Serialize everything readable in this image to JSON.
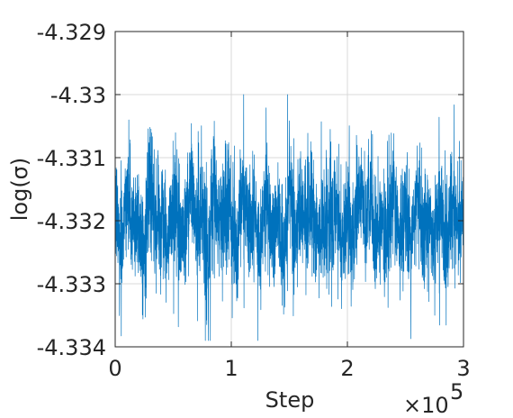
{
  "chart_data": {
    "type": "line",
    "title": "",
    "xlabel": "Step",
    "ylabel": "log(σ)",
    "x_exponent_label": {
      "prefix": "×10",
      "power": "5"
    },
    "xlim": [
      0,
      300000
    ],
    "ylim": [
      -4.334,
      -4.329
    ],
    "x_ticks": [
      0,
      100000,
      200000,
      300000
    ],
    "x_tick_labels": [
      "0",
      "1",
      "2",
      "3"
    ],
    "y_ticks": [
      -4.329,
      -4.33,
      -4.331,
      -4.332,
      -4.333,
      -4.334
    ],
    "y_tick_labels": [
      "-4.329",
      "-4.33",
      "-4.331",
      "-4.332",
      "-4.333",
      "-4.334"
    ],
    "grid": true,
    "series": [
      {
        "color": "#0072bd",
        "approx_mean": -4.332,
        "approx_band": [
          -4.333,
          -4.331
        ],
        "approx_max": -4.33,
        "approx_min": -4.3339,
        "points": [
          [
            0,
            -4.3318
          ],
          [
            5000,
            -4.3324
          ],
          [
            10000,
            -4.3315
          ],
          [
            15000,
            -4.3321
          ],
          [
            20000,
            -4.3319
          ],
          [
            25000,
            -4.3326
          ],
          [
            30000,
            -4.3314
          ],
          [
            35000,
            -4.3322
          ],
          [
            40000,
            -4.3318
          ],
          [
            45000,
            -4.3325
          ],
          [
            50000,
            -4.3317
          ],
          [
            55000,
            -4.332
          ],
          [
            60000,
            -4.3323
          ],
          [
            65000,
            -4.3313
          ],
          [
            70000,
            -4.3321
          ],
          [
            75000,
            -4.3318
          ],
          [
            80000,
            -4.3327
          ],
          [
            85000,
            -4.3315
          ],
          [
            90000,
            -4.3322
          ],
          [
            95000,
            -4.3317
          ],
          [
            100000,
            -4.332
          ],
          [
            105000,
            -4.3324
          ],
          [
            110000,
            -4.3314
          ],
          [
            115000,
            -4.3321
          ],
          [
            120000,
            -4.3318
          ],
          [
            125000,
            -4.3325
          ],
          [
            130000,
            -4.3316
          ],
          [
            135000,
            -4.3322
          ],
          [
            140000,
            -4.3319
          ],
          [
            145000,
            -4.3326
          ],
          [
            150000,
            -4.3315
          ],
          [
            155000,
            -4.3323
          ],
          [
            160000,
            -4.3318
          ],
          [
            165000,
            -4.3321
          ],
          [
            170000,
            -4.3317
          ],
          [
            175000,
            -4.3324
          ],
          [
            180000,
            -4.3319
          ],
          [
            185000,
            -4.3322
          ],
          [
            190000,
            -4.3316
          ],
          [
            195000,
            -4.3323
          ],
          [
            200000,
            -4.3318
          ],
          [
            205000,
            -4.3325
          ],
          [
            210000,
            -4.3314
          ],
          [
            215000,
            -4.3321
          ],
          [
            220000,
            -4.3317
          ],
          [
            225000,
            -4.3324
          ],
          [
            230000,
            -4.3319
          ],
          [
            235000,
            -4.3322
          ],
          [
            240000,
            -4.3316
          ],
          [
            245000,
            -4.3323
          ],
          [
            250000,
            -4.3318
          ],
          [
            255000,
            -4.3325
          ],
          [
            260000,
            -4.3315
          ],
          [
            265000,
            -4.3322
          ],
          [
            270000,
            -4.3319
          ],
          [
            275000,
            -4.3323
          ],
          [
            280000,
            -4.3317
          ],
          [
            285000,
            -4.3324
          ],
          [
            290000,
            -4.3318
          ],
          [
            295000,
            -4.3321
          ],
          [
            300000,
            -4.3319
          ]
        ]
      }
    ]
  }
}
